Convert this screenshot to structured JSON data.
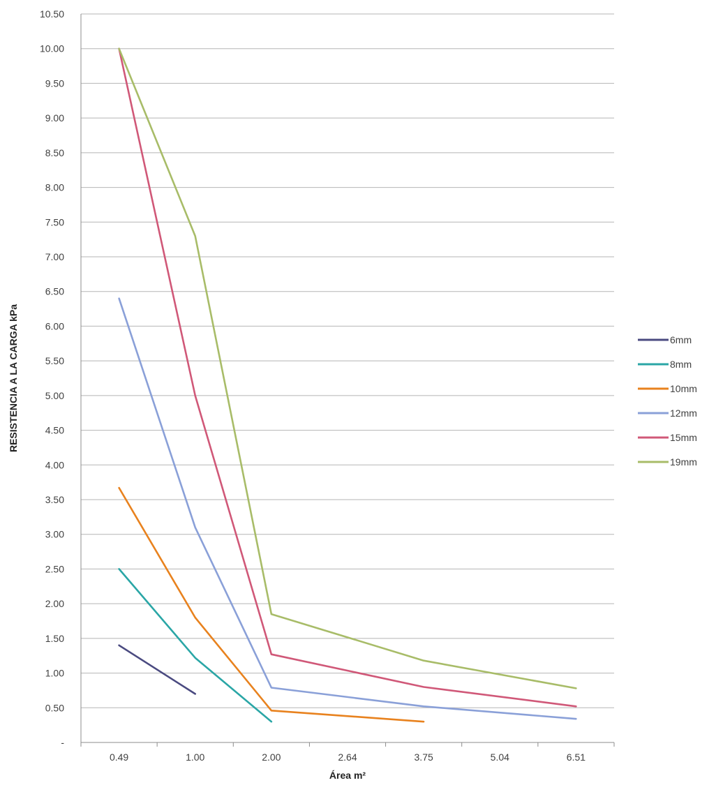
{
  "chart_data": {
    "type": "line",
    "title": "",
    "xlabel": "Área m²",
    "ylabel": "RESISTENCIA A LA CARGA kPa",
    "categories": [
      "0.49",
      "1.00",
      "2.00",
      "2.64",
      "3.75",
      "5.04",
      "6.51"
    ],
    "y_ticks": [
      "-",
      "0.50",
      "1.00",
      "1.50",
      "2.00",
      "2.50",
      "3.00",
      "3.50",
      "4.00",
      "4.50",
      "5.00",
      "5.50",
      "6.00",
      "6.50",
      "7.00",
      "7.50",
      "8.00",
      "8.50",
      "9.00",
      "9.50",
      "10.00",
      "10.50"
    ],
    "ylim": [
      0,
      10.5
    ],
    "grid": true,
    "legend_position": "right",
    "series": [
      {
        "name": "6mm",
        "color": "#4a4a80",
        "values": [
          1.4,
          0.7,
          null,
          null,
          null,
          null,
          null
        ]
      },
      {
        "name": "8mm",
        "color": "#2aa6a6",
        "values": [
          2.5,
          1.22,
          0.3,
          null,
          null,
          null,
          null
        ]
      },
      {
        "name": "10mm",
        "color": "#e8821e",
        "values": [
          3.67,
          1.8,
          0.46,
          null,
          0.3,
          null,
          null
        ]
      },
      {
        "name": "12mm",
        "color": "#8aa0d8",
        "values": [
          6.4,
          3.1,
          0.79,
          null,
          0.52,
          null,
          0.34
        ]
      },
      {
        "name": "15mm",
        "color": "#d05878",
        "values": [
          10.0,
          5.0,
          1.27,
          null,
          0.8,
          null,
          0.52
        ]
      },
      {
        "name": "19mm",
        "color": "#a8bc68",
        "values": [
          10.0,
          7.3,
          1.85,
          null,
          1.18,
          null,
          0.78
        ]
      }
    ]
  }
}
